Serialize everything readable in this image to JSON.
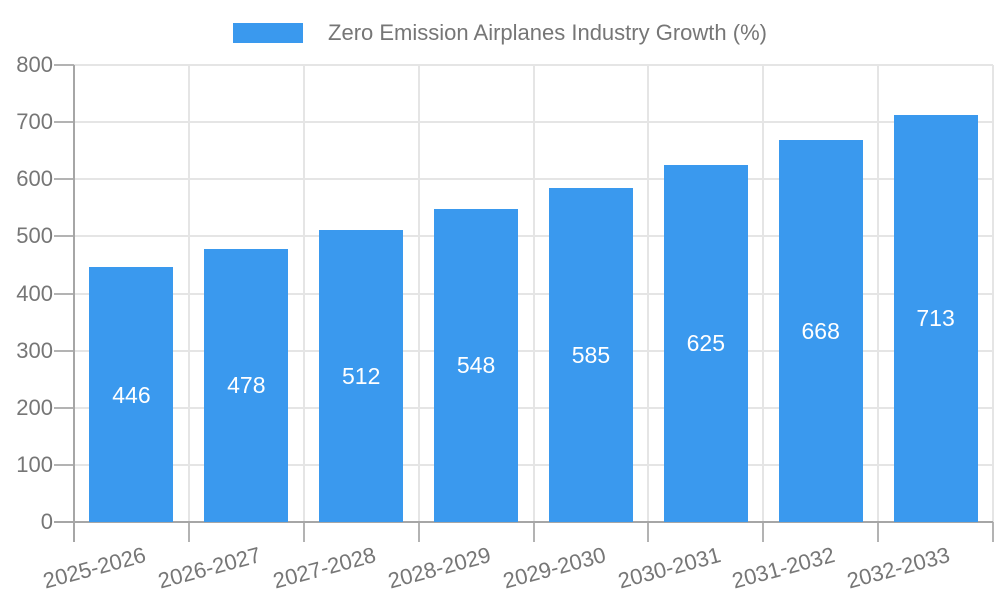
{
  "legend": {
    "label": "Zero Emission Airplanes Industry Growth (%)"
  },
  "colors": {
    "bar": "#3a99ee",
    "bar_label": "#ffffff",
    "axis_text": "#767676",
    "grid_line": "#e5e5e5",
    "axis_line": "#a6a6a6",
    "tick_mark": "#b3b3b3",
    "background": "#ffffff"
  },
  "chart_data": {
    "type": "bar",
    "title": "Zero Emission Airplanes Industry Growth (%)",
    "categories": [
      "2025-2026",
      "2026-2027",
      "2027-2028",
      "2028-2029",
      "2029-2030",
      "2030-2031",
      "2031-2032",
      "2032-2033"
    ],
    "values": [
      446,
      478,
      512,
      548,
      585,
      625,
      668,
      713
    ],
    "xlabel": "",
    "ylabel": "",
    "ylim": [
      0,
      800
    ],
    "ytick_step": 100,
    "ytick_labels": [
      "0",
      "100",
      "200",
      "300",
      "400",
      "500",
      "600",
      "700",
      "800"
    ],
    "grid": true,
    "legend_position": "top",
    "x_label_rotation_deg": -15,
    "bar_value_labels_inside": true
  }
}
